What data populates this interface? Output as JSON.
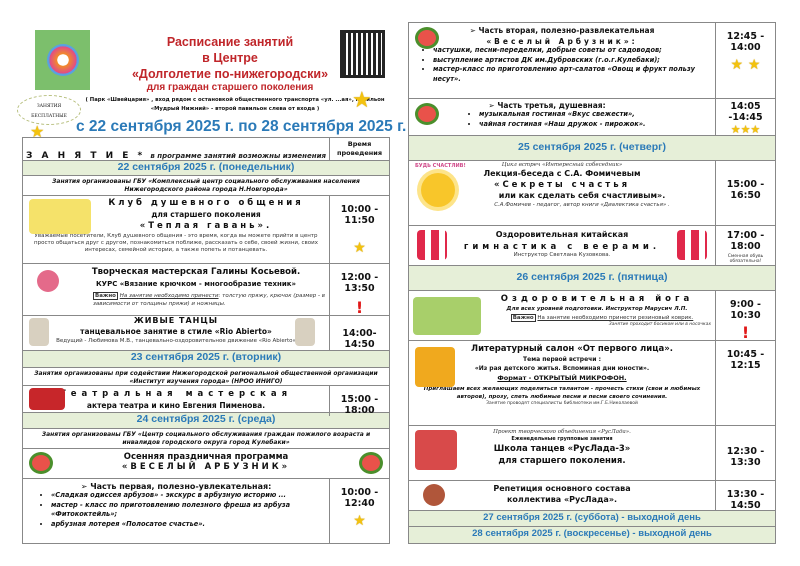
{
  "header": {
    "title_lines": [
      "Расписание занятий",
      "в Центре",
      "«Долголетие по-нижегородски»",
      "для граждан старшего поколения"
    ],
    "address": "( Парк «Швейцария» , вход рядом с остановкой общественного транспорта «ул. ...ая», павильон «Мудрый Нижний» - второй павильон слева от входа )",
    "free_badge": [
      "ЗАНЯТИЯ",
      "БЕСПЛАТНЫЕ"
    ],
    "date_range": "с 22 сентября 2025 г. по 28 сентября 2025 г."
  },
  "table_header": {
    "activity": "З А Н Я Т И Е *",
    "note": "в программе занятий возможны изменения",
    "time": "Время проведения"
  },
  "left": {
    "day22": "22 сентября 2025 г. (понедельник)",
    "org22": "Занятия организованы ГБУ «Комплексный центр социального обслуживания населения Нижегородского района города Н.Новгорода»",
    "club": {
      "l1": "Клуб душевного общения",
      "l2": "для старшего поколения",
      "l3": "«Теплая гавань».",
      "desc": "Уважаемые посетители, Клуб душевного общения - это время, когда вы можете прийти в центр просто общаться друг с другом, познакомиться поближе, рассказать о себе, своей жизни, своих интересах, семейной истории, а также попеть и потанцевать.",
      "time": "10:00 - 11:50"
    },
    "knit": {
      "l1": "Творческая мастерская Галины Косьевой.",
      "l2": "КУРС «Вязание крючком - многообразие техник»",
      "important": "Важно",
      "need": "На занятие необходимо принести",
      "items": ": толстую пряжу, крючок (размер - в зависимости от толщины пряжи) и ножницы.",
      "time": "12:00 - 13:50"
    },
    "dance": {
      "l1": "ЖИВЫЕ ТАНЦЫ",
      "l2": "танцевальное занятие в стиле «Rio Abierto»",
      "desc": "Ведущий - Любимова М.В., танцевально-оздоровительное движение «Rio Abierto»",
      "time": "14:00-14:50"
    },
    "day23": "23 сентября 2025 г. (вторник)",
    "org23": "Занятия организованы при содействии Нижегородской региональной общественной организации «Институт изучения города» (НРОО ИНИГО)",
    "theatre": {
      "l1": "Театральная мастерская",
      "l2": "актера театра и кино Евгения Пименова.",
      "time": "15:00 - 18:00"
    },
    "day24": "24 сентября 2025 г. (среда)",
    "org24": "Занятия организованы ГБУ «Центр социального обслуживания граждан пожилого возраста и инвалидов городского округа город Кулебаки»",
    "fest": {
      "l1": "Осенняя праздничная программа",
      "l2": "«ВЕСЕЛЫЙ АРБУЗНИК»"
    },
    "part1": {
      "title": "Часть первая, полезно-увлекательная:",
      "items": [
        "«Сладкая одиссея арбузов» - экскурс в арбузную историю ...",
        "мастер - класс по приготовлению полезного фреша из арбуза «Фитококтейль»;",
        "арбузная лотерея «Полосатое счастье»."
      ],
      "time": "10:00 - 12:40"
    }
  },
  "right": {
    "part2": {
      "title": "Часть вторая, полезно-развлекательная",
      "sub": "«Веселый Арбузник»:",
      "items": [
        "частушки, песни-переделки, добрые советы от садоводов;",
        "выступление артистов ДК им.Дубровских (г.о.г.Кулебаки);",
        "мастер-класс по приготовлению арт-салатов «Овощ и фрукт пользу несут»."
      ],
      "time": "12:45 - 14:00"
    },
    "part3": {
      "title": "Часть третья, душевная:",
      "items": [
        "музыкальная гостиная «Вкус свежести»,",
        "чайная гостиная «Наш дружок - пирожок»."
      ],
      "time": "14:05 -14:45"
    },
    "day25": "25 сентября 2025 г. (четверг)",
    "lecture": {
      "cycle": "Цикл встреч «Интересный собеседник»",
      "l1": "Лекция-беседа с С.А. Фомичевым",
      "l2": "«Секреты счастья",
      "l3": "или как сделать себя счастливым».",
      "desc": "С.А.Фомичев - педагог, автор книги «Диалектика счастья» .",
      "sun_text": "БУДЬ СЧАСТЛИВ!",
      "time": "15:00 - 16:50"
    },
    "gym": {
      "l1": "Оздоровительная китайская",
      "l2": "гимнастика с веерами.",
      "desc": "Инструктор Светлана Кузовкова.",
      "time": "17:00 - 18:00",
      "note": "Сменная обувь обязательна!"
    },
    "day26": "26 сентября 2025 г. (пятница)",
    "yoga": {
      "l1": "Оздоровительная йога",
      "l2": "Для всех уровней подготовки. Инструктор Марусич Л.П.",
      "important": "Важно",
      "need": "На занятие необходимо принести резиновый коврик.",
      "note": "Занятие проходит босиком или в носочках",
      "time": "9:00 - 10:30"
    },
    "lit": {
      "l1": "Литературный салон «От первого лица».",
      "l2": "Тема первой встречи :",
      "l3": "«Из рая детского житья. Вспоминая дни юности».",
      "l4": "Формат - ОТКРЫТЫЙ МИКРОФОН.",
      "desc": "Приглашаем всех желающих поделиться талантом - прочесть стихи (свои и любимых авторов), прозу, спеть любимые песни и песни своего сочинения.",
      "by": "Занятие проводят специалисты библиотеки им.Г.Е.Николаевой",
      "time": "10:45 - 12:15"
    },
    "ruslada": {
      "proj": "Проект творческого объединения «РусЛада».",
      "weekly": "Еженедельные групповые занятия",
      "l1": "Школа танцев «РусЛада-3»",
      "l2": "для старшего поколения.",
      "time": "12:30 - 13:30"
    },
    "rep": {
      "l1": "Репетиция основного состава",
      "l2": "коллектива «РусЛада».",
      "time": "13:30 - 14:50"
    },
    "day27": "27 сентября 2025 г. (суббота) - выходной день",
    "day28": "28 сентября 2025 г. (воскресенье) - выходной день"
  },
  "colors": {
    "title": "#c0262a",
    "day": "#2b7ab8",
    "day_bg": "#e6efd8"
  }
}
